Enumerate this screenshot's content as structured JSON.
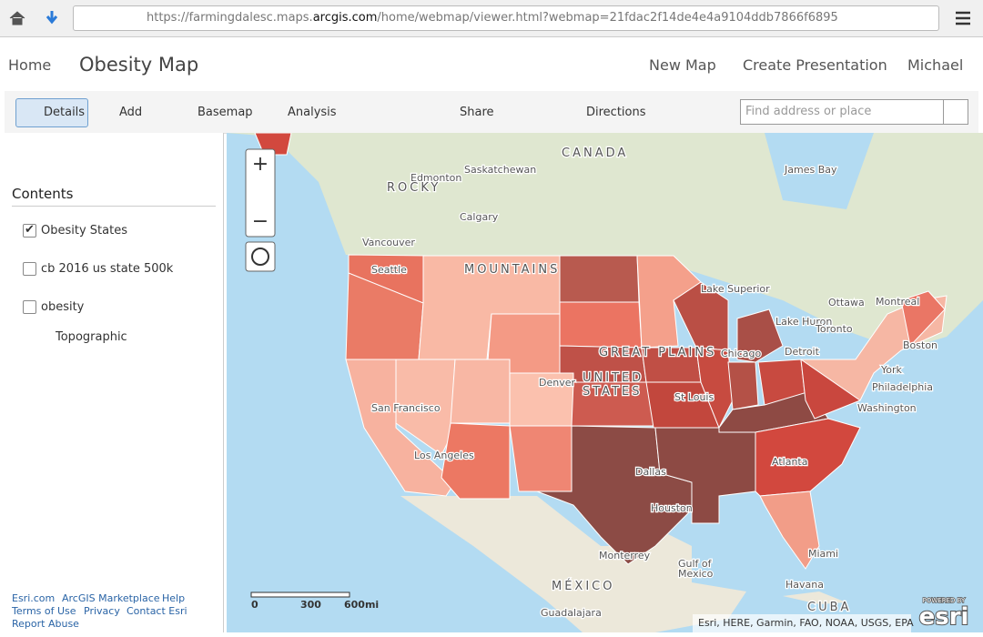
{
  "browser": {
    "url_prefix": "https://farmingdalesc.maps.",
    "url_domain": "arcgis.com",
    "url_rest": "/home/webmap/viewer.html?webmap=21fdac2f14de4e4a9104ddb7866f6895"
  },
  "header": {
    "home": "Home",
    "title": "Obesity Map",
    "new_map": "New Map",
    "create_presentation": "Create Presentation",
    "user": "Michael"
  },
  "toolbar": {
    "details": "Details",
    "add": "Add",
    "basemap": "Basemap",
    "analysis": "Analysis",
    "share": "Share",
    "directions": "Directions",
    "search_placeholder": "Find address or place"
  },
  "sidebar": {
    "heading": "Contents",
    "layers": [
      {
        "name": "Obesity States",
        "checked": true
      },
      {
        "name": "cb 2016 us state 500k",
        "checked": false
      },
      {
        "name": "obesity",
        "checked": false
      }
    ],
    "basemap": "Topographic",
    "footer_links": [
      "Esri.com",
      "ArcGIS Marketplace",
      "Help",
      "Terms of Use",
      "Privacy",
      "Contact Esri",
      "Report Abuse"
    ]
  },
  "map": {
    "labels": [
      "CANADA",
      "Edmonton",
      "Saskatchewan",
      "ROCKY",
      "Calgary",
      "Vancouver",
      "Seattle",
      "MOUNTAINS",
      "James Bay",
      "Lake Superior",
      "Ottawa",
      "Montreal",
      "Lake Huron",
      "Toronto",
      "Detroit",
      "Chicago",
      "Boston",
      "York",
      "Philadelphia",
      "Washington",
      "GREAT PLAINS",
      "UNITED",
      "STATES",
      "St Louis",
      "Denver",
      "San Francisco",
      "Los Angeles",
      "Dallas",
      "Houston",
      "Atlanta",
      "Miami",
      "Monterrey",
      "Gulf of",
      "Mexico",
      "MÉXICO",
      "Havana",
      "CUBA",
      "Guadalajara"
    ],
    "scale_ticks": [
      "0",
      "300",
      "600mi"
    ],
    "attribution": "Esri, HERE, Garmin, FAO, NOAA, USGS, EPA",
    "logo_caption": "POWERED BY",
    "logo": "esri"
  }
}
